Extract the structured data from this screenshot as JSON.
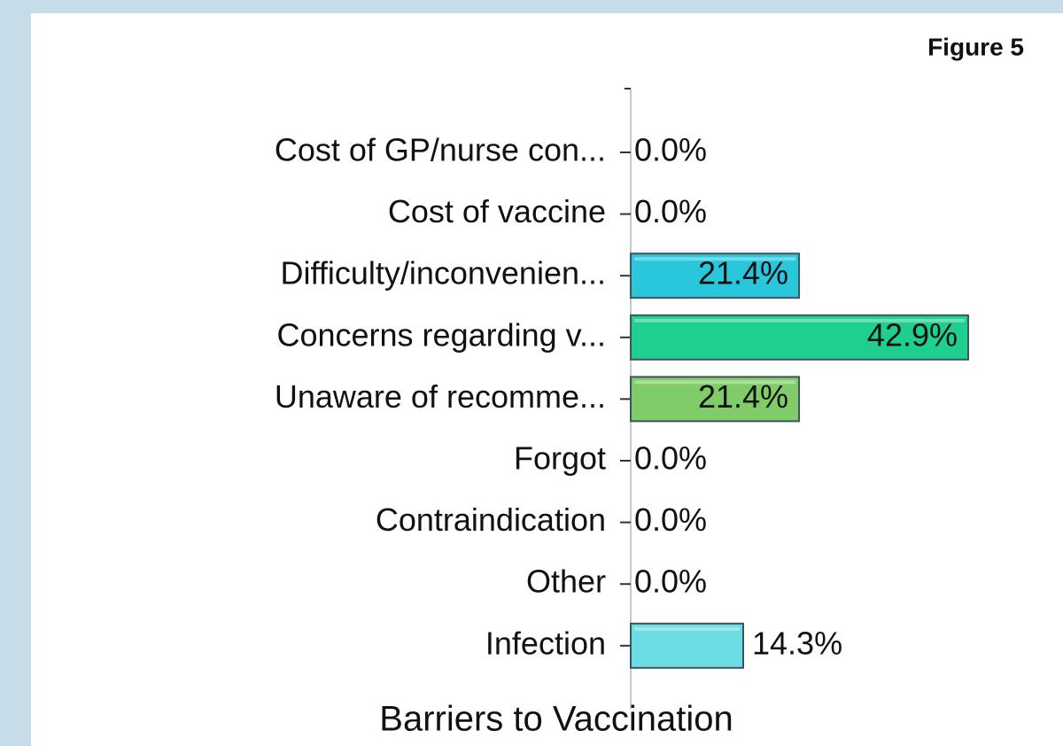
{
  "chart_data": {
    "type": "bar",
    "orientation": "horizontal",
    "title": "Barriers to Vaccination",
    "annotation": "Figure 5",
    "categories": [
      "Cost of GP/nurse con...",
      "Cost of vaccine",
      "Difficulty/inconvenien...",
      "Concerns regarding v...",
      "Unaware of recomme...",
      "Forgot",
      "Contraindication",
      "Other",
      "Infection"
    ],
    "values": [
      0,
      0,
      21.4,
      42.9,
      21.4,
      0,
      0,
      0,
      14.3
    ],
    "value_labels": [
      "0.0%",
      "0.0%",
      "21.4%",
      "42.9%",
      "21.4%",
      "0.0%",
      "0.0%",
      "0.0%",
      "14.3%"
    ],
    "colors": [
      null,
      null,
      "#29c6dc",
      "#1ecf8f",
      "#7fcc68",
      null,
      null,
      null,
      "#6cdde3"
    ]
  }
}
